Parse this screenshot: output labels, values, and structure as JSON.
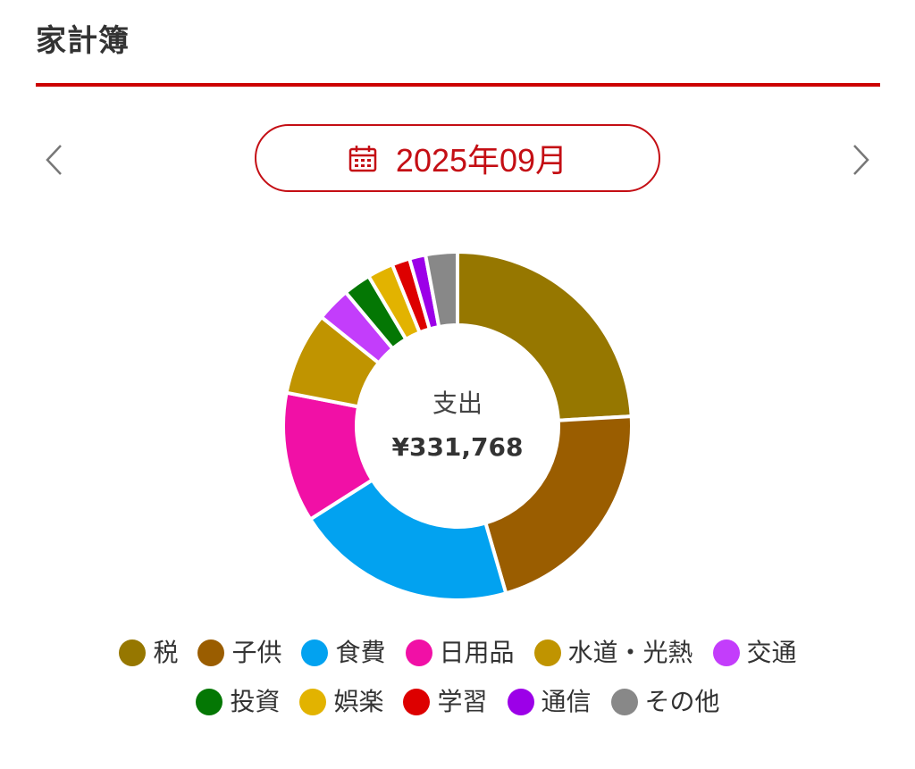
{
  "page": {
    "title": "家計簿"
  },
  "colors": {
    "accent": "#c40e14",
    "rule": "#cc0000",
    "nav": "#777777"
  },
  "month_selector": {
    "label": "2025年09月",
    "icon": "calendar-icon",
    "prev_icon": "chevron-left-icon",
    "next_icon": "chevron-right-icon"
  },
  "center": {
    "label": "支出",
    "total": "¥331,768"
  },
  "chart_data": {
    "type": "pie",
    "donut": true,
    "categories": [
      "税",
      "子供",
      "食費",
      "日用品",
      "水道・光熱",
      "交通",
      "投資",
      "娯楽",
      "学習",
      "通信",
      "その他"
    ],
    "values": [
      80000,
      71000,
      68000,
      40000,
      25500,
      10500,
      8500,
      8000,
      5500,
      5000,
      9768
    ],
    "colors": [
      "#967700",
      "#9a5d00",
      "#02a2f0",
      "#f110a6",
      "#c09400",
      "#c33dfb",
      "#047704",
      "#e2b300",
      "#dd0000",
      "#9c00e8",
      "#888888"
    ],
    "total": 331768,
    "legend_position": "bottom",
    "legend_rows": [
      [
        0,
        1,
        2,
        3,
        4,
        5
      ],
      [
        6,
        7,
        8,
        9,
        10
      ]
    ]
  }
}
